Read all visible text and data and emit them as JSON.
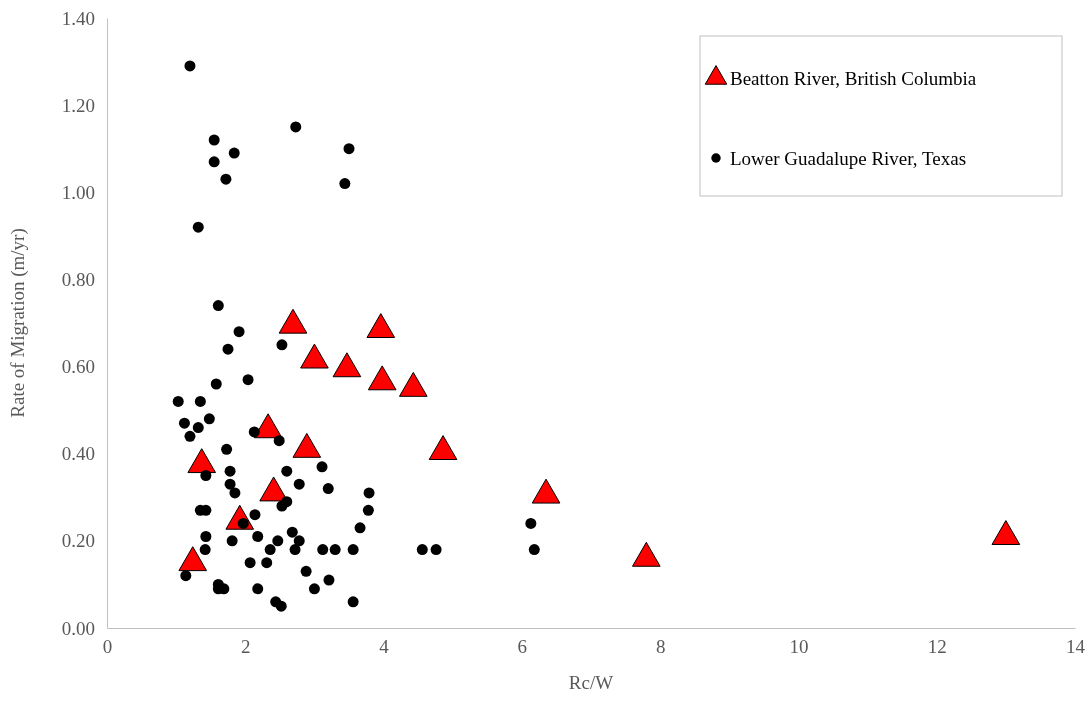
{
  "chart_data": {
    "type": "scatter",
    "xlabel": "Rc/W",
    "ylabel": "Rate of Migration (m/yr)",
    "xlim": [
      0,
      14
    ],
    "xticks": [
      0,
      2,
      4,
      6,
      8,
      10,
      12,
      14
    ],
    "ylim": [
      0,
      1.4
    ],
    "yticks": [
      {
        "value": 0,
        "label": "0.00"
      },
      {
        "value": 0.2,
        "label": "0.20"
      },
      {
        "value": 0.4,
        "label": "0.40"
      },
      {
        "value": 0.6,
        "label": "0.60"
      },
      {
        "value": 0.8,
        "label": "0.80"
      },
      {
        "value": 1,
        "label": "1.00"
      },
      {
        "value": 1.2,
        "label": "1.20"
      },
      {
        "value": 1.4,
        "label": "1.40"
      }
    ],
    "grid": false,
    "legend": "top right",
    "series": [
      {
        "name": "Beatton River, British Columbia",
        "color": "#ff0000",
        "marker": "triangle",
        "x": [
          1.24,
          1.37,
          1.92,
          2.33,
          2.41,
          2.69,
          2.89,
          3.0,
          3.47,
          3.96,
          3.98,
          4.43,
          4.86,
          6.35,
          7.8,
          13.0
        ],
        "values": [
          0.15,
          0.375,
          0.245,
          0.455,
          0.31,
          0.695,
          0.41,
          0.615,
          0.595,
          0.685,
          0.565,
          0.55,
          0.405,
          0.305,
          0.16,
          0.21
        ]
      },
      {
        "name": "Lower Guadalupe River, Texas",
        "color": "#000000",
        "marker": "circle",
        "x": [
          1.2,
          1.55,
          1.55,
          1.84,
          1.72,
          2.73,
          3.5,
          3.44,
          1.32,
          1.61,
          1.91,
          1.75,
          2.53,
          1.58,
          2.04,
          1.03,
          1.35,
          1.12,
          1.48,
          1.32,
          1.2,
          2.13,
          2.49,
          1.73,
          1.43,
          1.78,
          2.6,
          3.11,
          1.78,
          1.85,
          2.78,
          3.2,
          3.79,
          1.35,
          1.43,
          3.78,
          2.53,
          2.6,
          2.14,
          3.66,
          2.68,
          1.43,
          2.18,
          1.81,
          2.47,
          2.78,
          1.97,
          1.42,
          2.36,
          2.72,
          3.12,
          3.3,
          3.56,
          4.56,
          4.76,
          6.13,
          6.18,
          2.07,
          2.31,
          2.88,
          1.14,
          1.61,
          1.61,
          1.69,
          2.18,
          3.0,
          3.21,
          2.44,
          2.52,
          3.56
        ],
        "values": [
          1.29,
          1.12,
          1.07,
          1.09,
          1.03,
          1.15,
          1.1,
          1.02,
          0.92,
          0.74,
          0.68,
          0.64,
          0.65,
          0.56,
          0.57,
          0.52,
          0.52,
          0.47,
          0.48,
          0.46,
          0.44,
          0.45,
          0.43,
          0.41,
          0.35,
          0.36,
          0.36,
          0.37,
          0.33,
          0.31,
          0.33,
          0.32,
          0.31,
          0.27,
          0.27,
          0.27,
          0.28,
          0.29,
          0.26,
          0.23,
          0.22,
          0.21,
          0.21,
          0.2,
          0.2,
          0.2,
          0.24,
          0.18,
          0.18,
          0.18,
          0.18,
          0.18,
          0.18,
          0.18,
          0.18,
          0.24,
          0.18,
          0.15,
          0.15,
          0.13,
          0.12,
          0.1,
          0.09,
          0.09,
          0.09,
          0.09,
          0.11,
          0.06,
          0.05,
          0.06
        ]
      }
    ]
  }
}
